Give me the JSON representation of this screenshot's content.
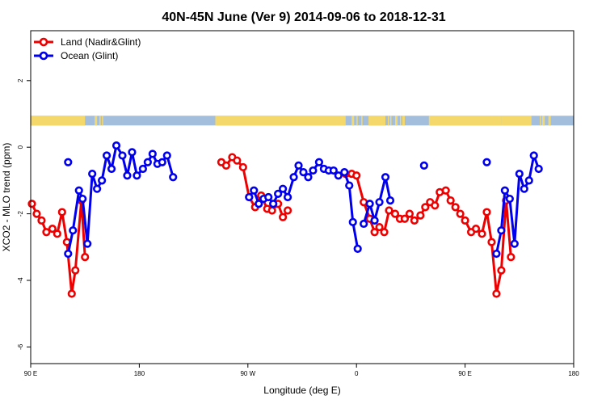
{
  "chart_data": {
    "type": "line",
    "title": "40N-45N June (Ver 9)   2014-09-06 to 2018-12-31",
    "xlabel": "Longitude (deg E)",
    "ylabel": "XCO2 - MLO trend (ppm)",
    "xlim": [
      90,
      540
    ],
    "ylim": [
      -6.5,
      3.5
    ],
    "x_ticks": [
      {
        "value": 90,
        "label": "90 E"
      },
      {
        "value": 180,
        "label": "180"
      },
      {
        "value": 270,
        "label": "90 W"
      },
      {
        "value": 360,
        "label": "0"
      },
      {
        "value": 450,
        "label": "90 E"
      },
      {
        "value": 540,
        "label": "180"
      }
    ],
    "y_ticks": [
      {
        "value": 2,
        "label": "2"
      },
      {
        "value": 0,
        "label": "0"
      },
      {
        "value": -2,
        "label": "-2"
      },
      {
        "value": -4,
        "label": "-4"
      },
      {
        "value": -6,
        "label": "-6"
      }
    ],
    "legend_position": "top-left",
    "grid": false,
    "land_mask": {
      "y": 0.8,
      "land_color": "#f5d86b",
      "ocean_color": "#a3bedc",
      "land_ranges": [
        [
          90,
          135
        ],
        [
          143,
          145
        ],
        [
          147,
          148
        ],
        [
          149,
          150
        ],
        [
          243,
          351
        ],
        [
          356,
          358
        ],
        [
          360,
          361
        ],
        [
          364,
          365
        ],
        [
          370,
          384
        ],
        [
          386,
          387
        ],
        [
          388,
          389
        ],
        [
          392,
          394
        ],
        [
          396,
          397
        ],
        [
          398,
          400
        ],
        [
          420,
          480
        ],
        [
          480,
          505
        ],
        [
          512,
          513
        ],
        [
          514,
          516
        ],
        [
          519,
          521
        ]
      ]
    },
    "series": [
      {
        "name": "Land (Nadir&Glint)",
        "color": "#ee0000",
        "segments": [
          [
            [
              91,
              -1.7
            ],
            [
              95,
              -2.0
            ],
            [
              99,
              -2.2
            ],
            [
              103,
              -2.55
            ],
            [
              108,
              -2.45
            ],
            [
              112,
              -2.6
            ],
            [
              116,
              -1.95
            ],
            [
              120,
              -2.85
            ],
            [
              124,
              -4.4
            ],
            [
              127,
              -3.7
            ],
            [
              132,
              -1.6
            ],
            [
              135,
              -3.3
            ]
          ],
          [
            [
              248,
              -0.45
            ],
            [
              252,
              -0.55
            ],
            [
              257,
              -0.3
            ],
            [
              261,
              -0.4
            ],
            [
              266,
              -0.6
            ],
            [
              271,
              -1.5
            ],
            [
              276,
              -1.8
            ],
            [
              281,
              -1.45
            ],
            [
              286,
              -1.85
            ],
            [
              290,
              -1.9
            ],
            [
              295,
              -1.7
            ],
            [
              299,
              -2.1
            ],
            [
              303,
              -1.9
            ]
          ],
          [
            [
              351,
              -0.8
            ],
            [
              356,
              -0.8
            ],
            [
              360,
              -0.85
            ],
            [
              366,
              -1.65
            ],
            [
              371,
              -2.15
            ],
            [
              375,
              -2.55
            ],
            [
              379,
              -2.4
            ],
            [
              383,
              -2.55
            ],
            [
              387,
              -1.9
            ],
            [
              392,
              -2.0
            ],
            [
              396,
              -2.15
            ],
            [
              400,
              -2.15
            ],
            [
              404,
              -2.0
            ],
            [
              408,
              -2.2
            ],
            [
              413,
              -2.05
            ],
            [
              417,
              -1.8
            ],
            [
              421,
              -1.65
            ],
            [
              425,
              -1.75
            ],
            [
              429,
              -1.35
            ],
            [
              434,
              -1.3
            ],
            [
              438,
              -1.6
            ],
            [
              442,
              -1.8
            ],
            [
              446,
              -2.0
            ],
            [
              450,
              -2.2
            ],
            [
              455,
              -2.55
            ],
            [
              459,
              -2.45
            ],
            [
              464,
              -2.6
            ],
            [
              468,
              -1.95
            ],
            [
              472,
              -2.85
            ],
            [
              476,
              -4.4
            ],
            [
              480,
              -3.7
            ],
            [
              484,
              -1.6
            ],
            [
              488,
              -3.3
            ]
          ]
        ]
      },
      {
        "name": "Ocean (Glint)",
        "color": "#0000ee",
        "segments": [
          [
            [
              121,
              -3.2
            ],
            [
              125,
              -2.5
            ],
            [
              130,
              -1.3
            ],
            [
              133,
              -1.55
            ],
            [
              137,
              -2.9
            ],
            [
              141,
              -0.8
            ],
            [
              145,
              -1.25
            ],
            [
              149,
              -1.0
            ],
            [
              153,
              -0.25
            ],
            [
              157,
              -0.65
            ],
            [
              161,
              0.05
            ],
            [
              166,
              -0.25
            ],
            [
              170,
              -0.85
            ],
            [
              174,
              -0.15
            ],
            [
              178,
              -0.85
            ],
            [
              183,
              -0.65
            ],
            [
              187,
              -0.45
            ],
            [
              191,
              -0.2
            ],
            [
              195,
              -0.5
            ],
            [
              199,
              -0.45
            ],
            [
              203,
              -0.25
            ],
            [
              208,
              -0.9
            ]
          ],
          [
            [
              271,
              -1.5
            ],
            [
              275,
              -1.3
            ],
            [
              279,
              -1.7
            ],
            [
              283,
              -1.55
            ],
            [
              287,
              -1.5
            ],
            [
              291,
              -1.7
            ],
            [
              295,
              -1.4
            ],
            [
              299,
              -1.25
            ],
            [
              303,
              -1.5
            ],
            [
              308,
              -0.9
            ],
            [
              312,
              -0.55
            ],
            [
              316,
              -0.75
            ],
            [
              320,
              -0.9
            ],
            [
              324,
              -0.7
            ],
            [
              329,
              -0.45
            ],
            [
              333,
              -0.65
            ],
            [
              337,
              -0.7
            ],
            [
              341,
              -0.7
            ],
            [
              345,
              -0.85
            ],
            [
              350,
              -0.75
            ],
            [
              354,
              -1.15
            ],
            [
              357,
              -2.25
            ],
            [
              361,
              -3.05
            ]
          ],
          [
            [
              366,
              -2.3
            ],
            [
              371,
              -1.7
            ],
            [
              375,
              -2.2
            ],
            [
              379,
              -1.65
            ],
            [
              384,
              -0.9
            ],
            [
              388,
              -1.6
            ]
          ],
          [
            [
              476,
              -3.2
            ],
            [
              480,
              -2.5
            ],
            [
              483,
              -1.3
            ],
            [
              487,
              -1.55
            ],
            [
              491,
              -2.9
            ],
            [
              495,
              -0.8
            ],
            [
              499,
              -1.25
            ],
            [
              503,
              -1.0
            ],
            [
              507,
              -0.25
            ],
            [
              511,
              -0.65
            ]
          ]
        ],
        "isolated_points": [
          [
            121,
            -0.45
          ],
          [
            416,
            -0.55
          ],
          [
            468,
            -0.45
          ]
        ]
      }
    ]
  }
}
